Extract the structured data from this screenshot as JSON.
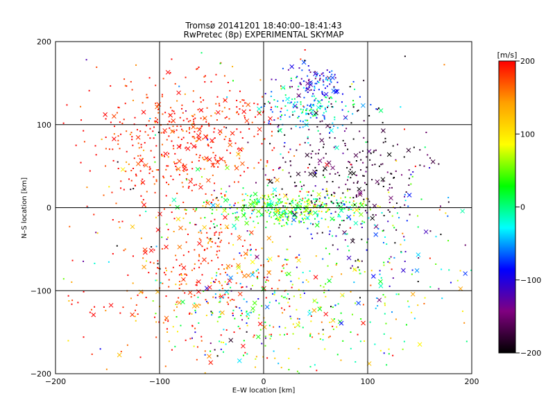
{
  "chart_data": {
    "type": "scatter",
    "title": "Tromsø 20141201 18:40:00–18:41:43",
    "subtitle": "RwPretec (8p) EXPERIMENTAL SKYMAP",
    "xlabel": "E–W location [km]",
    "ylabel": "N–S location [km]",
    "xlim": [
      -200,
      200
    ],
    "ylim": [
      -200,
      200
    ],
    "xticks": [
      "−200",
      "−100",
      "0",
      "100",
      "200"
    ],
    "yticks": [
      "−200",
      "−100",
      "0",
      "100",
      "200"
    ],
    "grid": true,
    "colorbar": {
      "label": "[m/s]",
      "range": [
        -200,
        200
      ],
      "ticks": [
        "200",
        "100",
        "0",
        "−100",
        "−200"
      ],
      "colors": [
        "#ff0000",
        "#ffa000",
        "#ffff00",
        "#00ff00",
        "#00ffff",
        "#0000ff",
        "#800080",
        "#000000"
      ],
      "placement": "right"
    },
    "markers": [
      "dot",
      "cross"
    ],
    "clusters": [
      {
        "cx": -60,
        "cy": 90,
        "sx": 40,
        "sy": 35,
        "n": 360,
        "v": 190,
        "dv": 25
      },
      {
        "cx": -120,
        "cy": 60,
        "sx": 40,
        "sy": 40,
        "n": 120,
        "v": 185,
        "dv": 30
      },
      {
        "cx": -50,
        "cy": -70,
        "sx": 40,
        "sy": 40,
        "n": 220,
        "v": 185,
        "dv": 30
      },
      {
        "cx": -110,
        "cy": -110,
        "sx": 45,
        "sy": 40,
        "n": 90,
        "v": 170,
        "dv": 40
      },
      {
        "cx": 20,
        "cy": 0,
        "sx": 40,
        "sy": 9,
        "n": 380,
        "v": 30,
        "dv": 45
      },
      {
        "cx": 40,
        "cy": 120,
        "sx": 25,
        "sy": 15,
        "n": 170,
        "v": -30,
        "dv": 40
      },
      {
        "cx": 50,
        "cy": 150,
        "sx": 15,
        "sy": 10,
        "n": 80,
        "v": -100,
        "dv": 30
      },
      {
        "cx": 80,
        "cy": 50,
        "sx": 40,
        "sy": 40,
        "n": 260,
        "v": -180,
        "dv": 25
      },
      {
        "cx": 100,
        "cy": -30,
        "sx": 45,
        "sy": 45,
        "n": 150,
        "v": -50,
        "dv": 90
      },
      {
        "cx": 50,
        "cy": -120,
        "sx": 55,
        "sy": 45,
        "n": 220,
        "v": 70,
        "dv": 70
      },
      {
        "cx": -30,
        "cy": -130,
        "sx": 30,
        "sy": 40,
        "n": 120,
        "v": -20,
        "dv": 90
      },
      {
        "cx": 0,
        "cy": 0,
        "sx": 130,
        "sy": 130,
        "n": 200,
        "v": 0,
        "dv": 170
      }
    ]
  }
}
